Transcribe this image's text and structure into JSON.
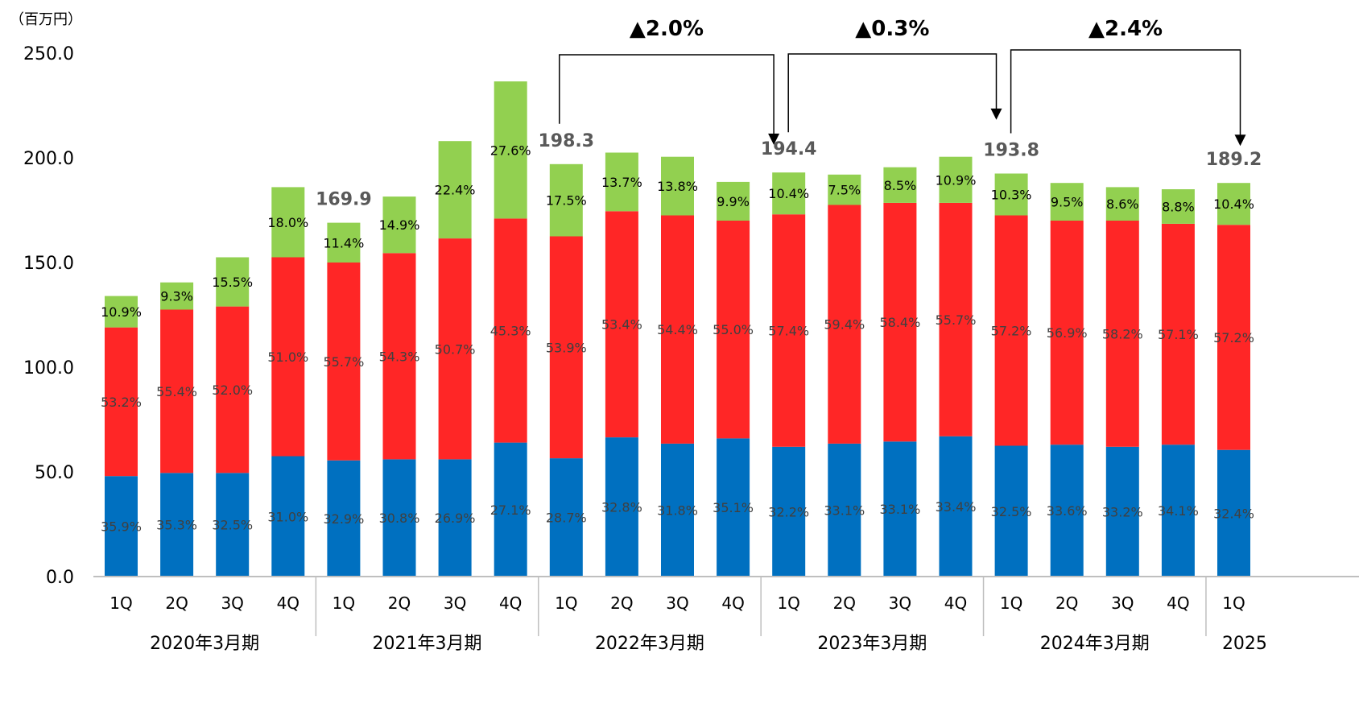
{
  "chart_data": {
    "type": "bar",
    "stacked": true,
    "y_unit_label": "（百万円）",
    "ylim": [
      0,
      250
    ],
    "y_ticks": [
      "0.0",
      "50.0",
      "100.0",
      "150.0",
      "200.0",
      "250.0"
    ],
    "groups": [
      {
        "name": "2020年3月期",
        "quarters": [
          "1Q",
          "2Q",
          "3Q",
          "4Q"
        ]
      },
      {
        "name": "2021年3月期",
        "quarters": [
          "1Q",
          "2Q",
          "3Q",
          "4Q"
        ]
      },
      {
        "name": "2022年3月期",
        "quarters": [
          "1Q",
          "2Q",
          "3Q",
          "4Q"
        ]
      },
      {
        "name": "2023年3月期",
        "quarters": [
          "1Q",
          "2Q",
          "3Q",
          "4Q"
        ]
      },
      {
        "name": "2024年3月期",
        "quarters": [
          "1Q",
          "2Q",
          "3Q",
          "4Q"
        ]
      },
      {
        "name": "2025",
        "quarters": [
          "1Q"
        ]
      }
    ],
    "bars": [
      {
        "values": [
          48,
          71,
          15
        ],
        "labels": [
          "35.9%",
          "53.2%",
          "10.9%"
        ]
      },
      {
        "values": [
          49.5,
          78,
          13
        ],
        "labels": [
          "35.3%",
          "55.4%",
          "9.3%"
        ]
      },
      {
        "values": [
          49.5,
          79.5,
          23.5
        ],
        "labels": [
          "32.5%",
          "52.0%",
          "15.5%"
        ]
      },
      {
        "values": [
          57.5,
          95,
          33.5
        ],
        "labels": [
          "31.0%",
          "51.0%",
          "18.0%"
        ]
      },
      {
        "values": [
          55.5,
          94.5,
          19
        ],
        "labels": [
          "32.9%",
          "55.7%",
          "11.4%"
        ]
      },
      {
        "values": [
          56,
          98.5,
          27
        ],
        "labels": [
          "30.8%",
          "54.3%",
          "14.9%"
        ]
      },
      {
        "values": [
          56,
          105.5,
          46.5
        ],
        "labels": [
          "26.9%",
          "50.7%",
          "22.4%"
        ]
      },
      {
        "values": [
          64,
          107,
          65.5
        ],
        "labels": [
          "27.1%",
          "45.3%",
          "27.6%"
        ]
      },
      {
        "values": [
          56.5,
          106,
          34.5
        ],
        "labels": [
          "28.7%",
          "53.9%",
          "17.5%"
        ]
      },
      {
        "values": [
          66.5,
          108,
          28
        ],
        "labels": [
          "32.8%",
          "53.4%",
          "13.7%"
        ]
      },
      {
        "values": [
          63.5,
          109,
          28
        ],
        "labels": [
          "31.8%",
          "54.4%",
          "13.8%"
        ]
      },
      {
        "values": [
          66,
          104,
          18.5
        ],
        "labels": [
          "35.1%",
          "55.0%",
          "9.9%"
        ]
      },
      {
        "values": [
          62,
          111,
          20
        ],
        "labels": [
          "32.2%",
          "57.4%",
          "10.4%"
        ]
      },
      {
        "values": [
          63.5,
          114,
          14.5
        ],
        "labels": [
          "33.1%",
          "59.4%",
          "7.5%"
        ]
      },
      {
        "values": [
          64.5,
          114,
          17
        ],
        "labels": [
          "33.1%",
          "58.4%",
          "8.5%"
        ]
      },
      {
        "values": [
          67,
          111.5,
          22
        ],
        "labels": [
          "33.4%",
          "55.7%",
          "10.9%"
        ]
      },
      {
        "values": [
          62.5,
          110,
          20
        ],
        "labels": [
          "32.5%",
          "57.2%",
          "10.3%"
        ]
      },
      {
        "values": [
          63,
          107,
          18
        ],
        "labels": [
          "33.6%",
          "56.9%",
          "9.5%"
        ]
      },
      {
        "values": [
          62,
          108,
          16
        ],
        "labels": [
          "33.2%",
          "58.2%",
          "8.6%"
        ]
      },
      {
        "values": [
          63,
          105.5,
          16.5
        ],
        "labels": [
          "34.1%",
          "57.1%",
          "8.8%"
        ]
      },
      {
        "values": [
          60.5,
          107.5,
          20
        ],
        "labels": [
          "32.4%",
          "57.2%",
          "10.4%"
        ]
      }
    ],
    "series_colors": [
      "#0070C0",
      "#FF2626",
      "#92D050"
    ],
    "segment_label_colors": [
      "#404040",
      "#404040",
      "#000000"
    ],
    "totals": [
      {
        "bar_index": 4,
        "value": 169.9,
        "text": "169.9"
      },
      {
        "bar_index": 8,
        "value": 198.3,
        "text": "198.3"
      },
      {
        "bar_index": 12,
        "value": 194.4,
        "text": "194.4"
      },
      {
        "bar_index": 16,
        "value": 193.8,
        "text": "193.8"
      },
      {
        "bar_index": 20,
        "value": 189.2,
        "text": "189.2"
      }
    ],
    "changes": [
      {
        "from_bar": 8,
        "to_bar": 11,
        "text": "▲2.0%"
      },
      {
        "from_bar": 12,
        "to_bar": 15,
        "text": "▲0.3%"
      },
      {
        "from_bar": 16,
        "to_bar": 20,
        "text": "▲2.4%"
      }
    ]
  }
}
